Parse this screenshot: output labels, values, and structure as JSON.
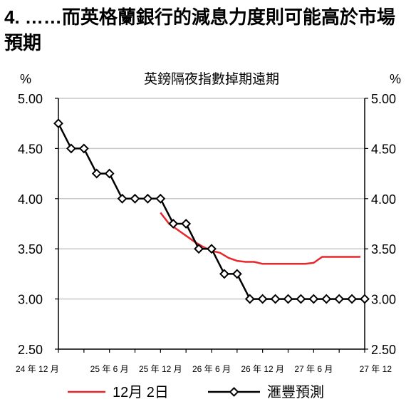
{
  "heading": "4. ……而英格蘭銀行的減息力度則可能高於市場預期",
  "chart_data": {
    "type": "line",
    "title": "英鎊隔夜指數掉期遠期",
    "ylabel_left": "%",
    "ylabel_right": "%",
    "ylim": [
      2.5,
      5.0
    ],
    "yticks": [
      "5.00",
      "4.50",
      "4.00",
      "3.50",
      "3.00",
      "2.50"
    ],
    "ytick_values": [
      5.0,
      4.5,
      4.0,
      3.5,
      3.0,
      2.5
    ],
    "xlim": [
      0,
      36
    ],
    "xticks": [
      "24 年 12 月",
      "25 年 6 月",
      "25 年 12 月",
      "26 年 6 月",
      "26 年 12 月",
      "27 年 6 月",
      "27 年 12"
    ],
    "xtick_values": [
      0,
      6,
      12,
      18,
      24,
      30,
      36
    ],
    "grid": true,
    "legend_position": "bottom",
    "series": [
      {
        "name": "12月 2日",
        "color": "#e8262b",
        "marker": "none",
        "x": [
          12,
          13,
          14,
          15,
          16,
          17,
          18,
          19,
          20,
          21,
          22,
          23,
          24,
          25,
          26,
          27,
          28,
          29,
          30,
          31,
          32,
          33,
          34,
          35,
          35.5
        ],
        "y": [
          3.86,
          3.75,
          3.69,
          3.63,
          3.57,
          3.52,
          3.48,
          3.46,
          3.41,
          3.38,
          3.37,
          3.37,
          3.35,
          3.35,
          3.35,
          3.35,
          3.35,
          3.35,
          3.36,
          3.42,
          3.42,
          3.42,
          3.42,
          3.42,
          3.42
        ]
      },
      {
        "name": "滙豐預測",
        "color": "#000000",
        "marker": "diamond",
        "x": [
          0,
          1.5,
          3,
          4.5,
          6,
          7.5,
          9,
          10.5,
          12,
          13.5,
          15,
          16.5,
          18,
          19.5,
          21,
          22.5,
          24,
          25.5,
          27,
          28.5,
          30,
          31.5,
          33,
          34.5,
          36
        ],
        "y": [
          4.75,
          4.5,
          4.5,
          4.25,
          4.25,
          4.0,
          4.0,
          4.0,
          4.0,
          3.75,
          3.75,
          3.5,
          3.5,
          3.25,
          3.25,
          3.0,
          3.0,
          3.0,
          3.0,
          3.0,
          3.0,
          3.0,
          3.0,
          3.0,
          3.0
        ]
      }
    ]
  }
}
